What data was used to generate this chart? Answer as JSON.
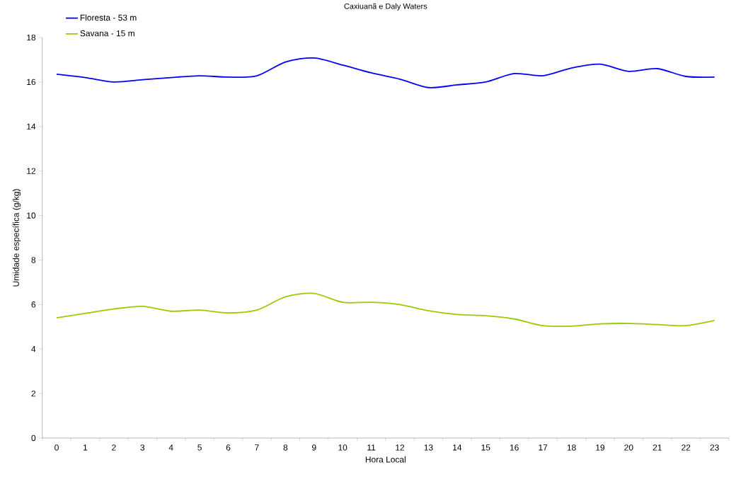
{
  "chart_data": {
    "type": "line",
    "title": "Caxiuanã e Daly Waters",
    "xlabel": "Hora Local",
    "ylabel": "Umidade específica (g/kg)",
    "categories": [
      "0",
      "1",
      "2",
      "3",
      "4",
      "5",
      "6",
      "7",
      "8",
      "9",
      "10",
      "11",
      "12",
      "13",
      "14",
      "15",
      "16",
      "17",
      "18",
      "19",
      "20",
      "21",
      "22",
      "23"
    ],
    "series": [
      {
        "name": "Floresta - 53 m",
        "color": "#0000ff",
        "values": [
          16.35,
          16.2,
          16.0,
          16.1,
          16.2,
          16.28,
          16.22,
          16.28,
          16.9,
          17.08,
          16.76,
          16.41,
          16.13,
          15.75,
          15.87,
          16.0,
          16.38,
          16.28,
          16.63,
          16.8,
          16.48,
          16.6,
          16.25,
          16.22
        ]
      },
      {
        "name": "Savana - 15 m",
        "color": "#99cc00",
        "values": [
          5.4,
          5.6,
          5.8,
          5.92,
          5.7,
          5.75,
          5.62,
          5.75,
          6.35,
          6.5,
          6.1,
          6.1,
          6.0,
          5.72,
          5.55,
          5.5,
          5.35,
          5.05,
          5.03,
          5.13,
          5.15,
          5.1,
          5.05,
          5.28
        ]
      }
    ],
    "ylim": [
      0,
      18
    ],
    "yticks": [
      0,
      2,
      4,
      6,
      8,
      10,
      12,
      14,
      16,
      18
    ],
    "grid": false,
    "legend": "top left",
    "marker": "none",
    "line_style": "solid"
  }
}
